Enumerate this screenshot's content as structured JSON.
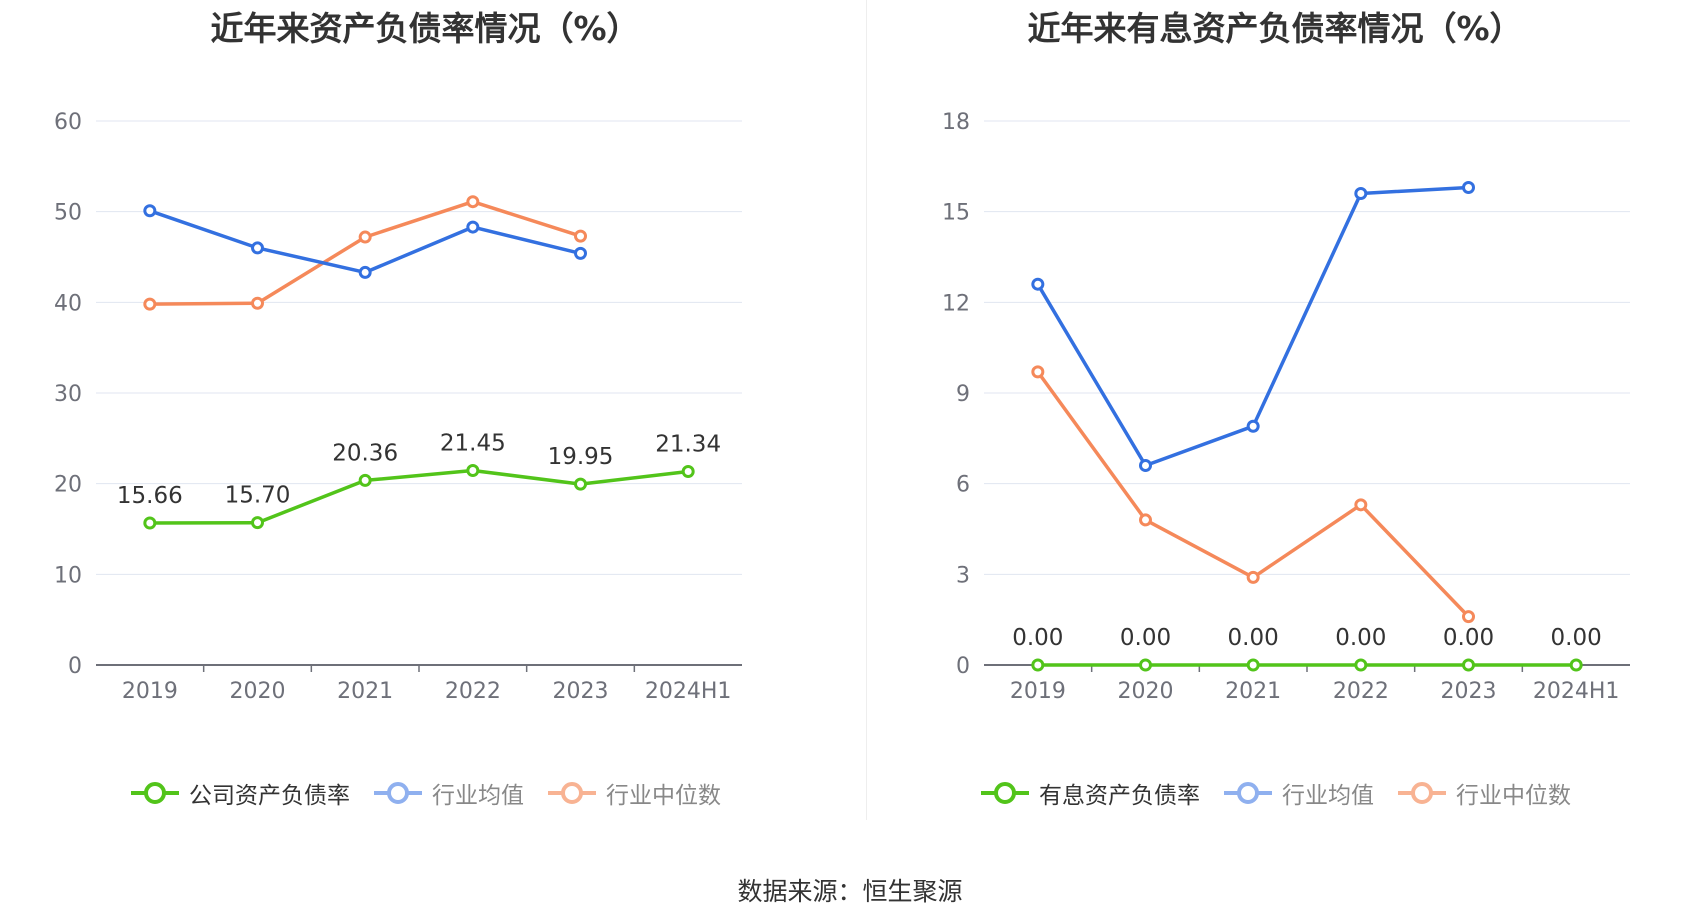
{
  "source": "数据来源：恒生聚源",
  "chart_data": [
    {
      "type": "line",
      "title": "近年来资产负债率情况（%）",
      "categories": [
        "2019",
        "2020",
        "2021",
        "2022",
        "2023",
        "2024H1"
      ],
      "ylim": [
        0,
        60
      ],
      "yticks": [
        0,
        10,
        20,
        30,
        40,
        50,
        60
      ],
      "grid": true,
      "legend_position": "bottom",
      "series": [
        {
          "name": "公司资产负债率",
          "color": "#52c41a",
          "values": [
            15.66,
            15.7,
            20.36,
            21.45,
            19.95,
            21.34
          ],
          "labels": [
            "15.66",
            "15.70",
            "20.36",
            "21.45",
            "19.95",
            "21.34"
          ]
        },
        {
          "name": "行业均值",
          "color": "#3370e0",
          "values": [
            50.1,
            46.0,
            43.3,
            48.3,
            45.4,
            null
          ]
        },
        {
          "name": "行业中位数",
          "color": "#f5895a",
          "values": [
            39.8,
            39.9,
            47.2,
            51.1,
            47.3,
            null
          ]
        }
      ]
    },
    {
      "type": "line",
      "title": "近年来有息资产负债率情况（%）",
      "categories": [
        "2019",
        "2020",
        "2021",
        "2022",
        "2023",
        "2024H1"
      ],
      "ylim": [
        0,
        18
      ],
      "yticks": [
        0,
        3,
        6,
        9,
        12,
        15,
        18
      ],
      "grid": true,
      "legend_position": "bottom",
      "series": [
        {
          "name": "有息资产负债率",
          "color": "#52c41a",
          "values": [
            0.0,
            0.0,
            0.0,
            0.0,
            0.0,
            0.0
          ],
          "labels": [
            "0.00",
            "0.00",
            "0.00",
            "0.00",
            "0.00",
            "0.00"
          ]
        },
        {
          "name": "行业均值",
          "color": "#3370e0",
          "values": [
            12.6,
            6.6,
            7.9,
            15.6,
            15.8,
            null
          ]
        },
        {
          "name": "行业中位数",
          "color": "#f5895a",
          "values": [
            9.7,
            4.8,
            2.9,
            5.3,
            1.6,
            null
          ]
        }
      ]
    }
  ]
}
